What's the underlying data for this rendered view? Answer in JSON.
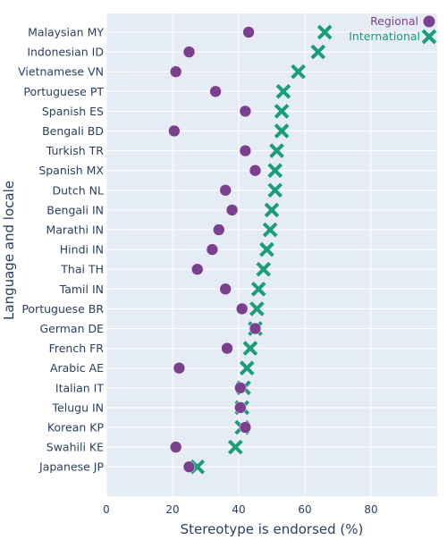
{
  "chart_data": {
    "type": "scatter",
    "xlabel": "Stereotype is endorsed (%)",
    "ylabel": "Language and locale",
    "xlim": [
      0,
      100
    ],
    "xticks": [
      0,
      20,
      40,
      60,
      80
    ],
    "grid": true,
    "legend_position": "top-right",
    "categories": [
      "Malaysian MY",
      "Indonesian ID",
      "Vietnamese VN",
      "Portuguese PT",
      "Spanish ES",
      "Bengali BD",
      "Turkish TR",
      "Spanish MX",
      "Dutch NL",
      "Bengali IN",
      "Marathi IN",
      "Hindi IN",
      "Thai TH",
      "Tamil IN",
      "Portuguese BR",
      "German DE",
      "French FR",
      "Arabic AE",
      "Italian IT",
      "Telugu IN",
      "Korean KP",
      "Swahili KE",
      "Japanese JP"
    ],
    "series": [
      {
        "name": "Regional",
        "color": "#7b3f8f",
        "marker": "circle",
        "values": [
          43,
          25,
          21,
          33,
          42,
          20.5,
          42,
          45,
          36,
          38,
          34,
          32,
          27.5,
          36,
          41,
          45,
          36.5,
          22,
          40.5,
          40.5,
          42,
          21,
          25
        ]
      },
      {
        "name": "International",
        "color": "#1a9e77",
        "marker": "x",
        "values": [
          66,
          64,
          58,
          53.5,
          53,
          53,
          51.5,
          51,
          51,
          50,
          49.5,
          48.5,
          47.5,
          46,
          45.5,
          45,
          43.5,
          42.5,
          41.5,
          41,
          41,
          39,
          27.5
        ]
      }
    ]
  }
}
